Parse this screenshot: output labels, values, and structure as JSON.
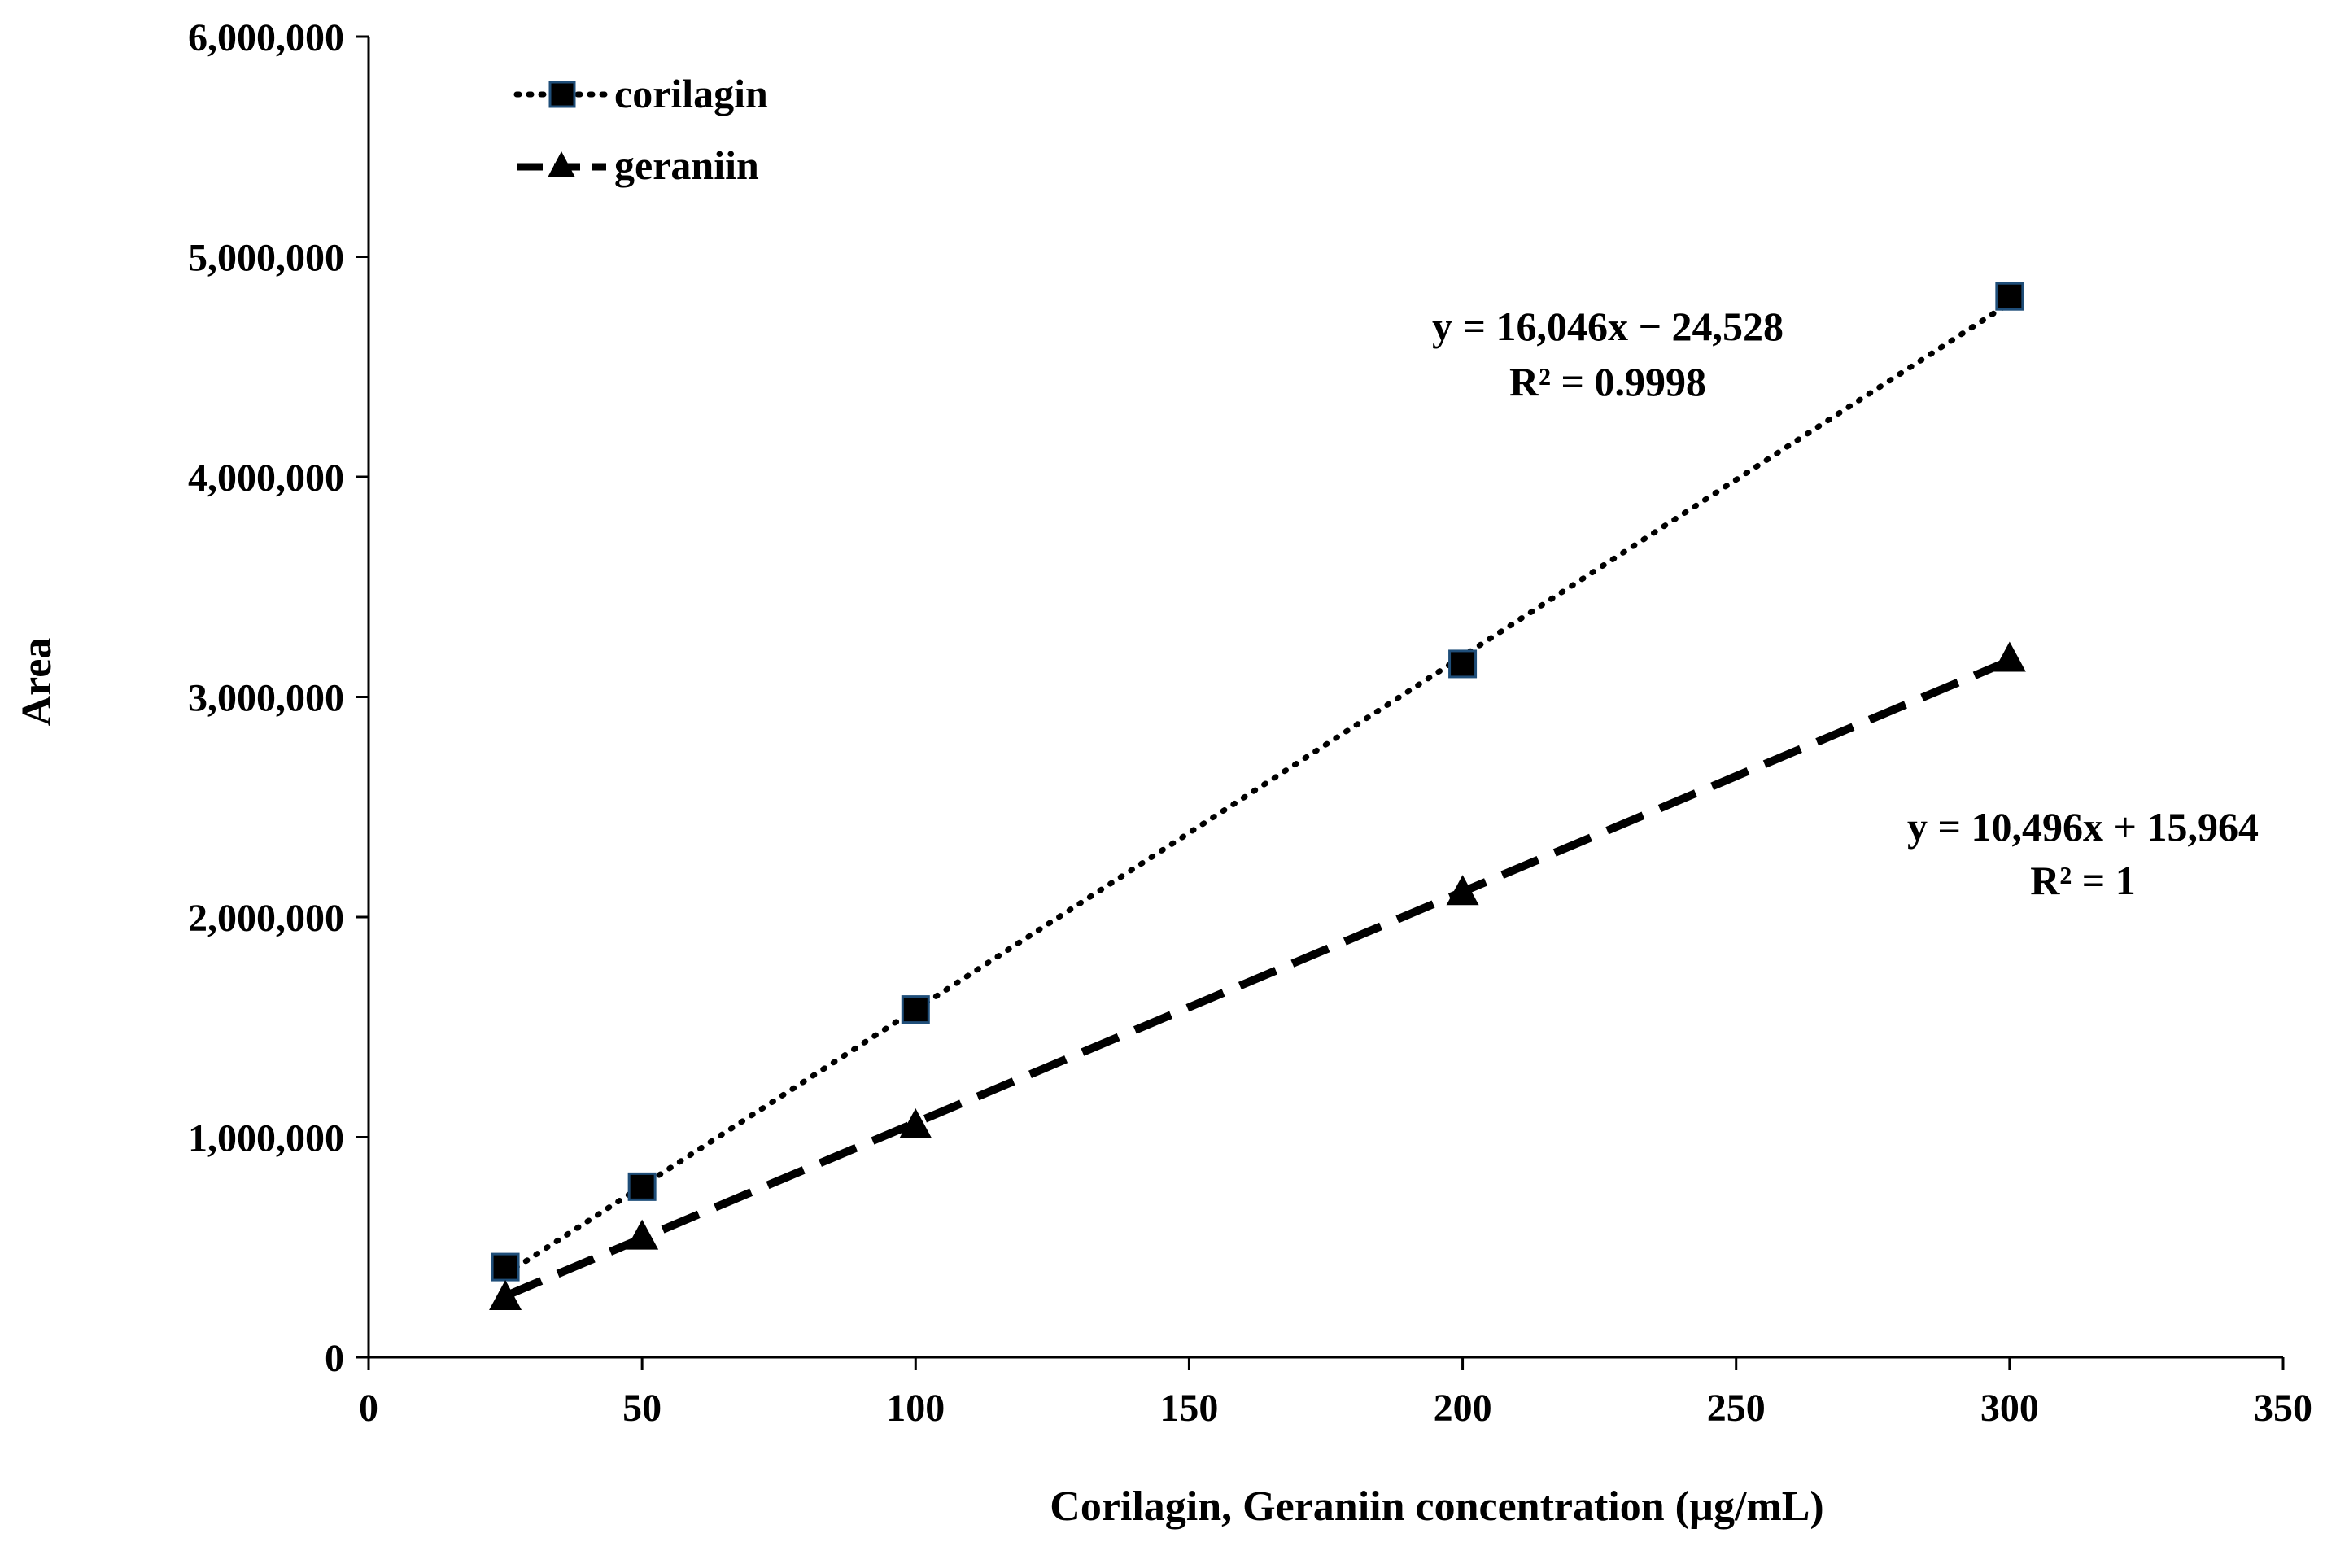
{
  "chart_data": {
    "type": "scatter",
    "title": "",
    "xlabel": "Corilagin, Geraniin concentration (µg/mL)",
    "ylabel": "Area",
    "xlim": [
      0,
      350
    ],
    "ylim": [
      0,
      6000000
    ],
    "xticks": [
      0,
      50,
      100,
      150,
      200,
      250,
      300,
      350
    ],
    "yticks": [
      0,
      1000000,
      2000000,
      3000000,
      4000000,
      5000000,
      6000000
    ],
    "xtick_labels": [
      "0",
      "50",
      "100",
      "150",
      "200",
      "250",
      "300",
      "350"
    ],
    "ytick_labels": [
      "0",
      "1,000,000",
      "2,000,000",
      "3,000,000",
      "4,000,000",
      "5,000,000",
      "6,000,000"
    ],
    "grid": false,
    "legend_position": "top-left",
    "series": [
      {
        "name": "corilagin",
        "marker": "square",
        "line_style": "dotted",
        "x": [
          25,
          50,
          100,
          200,
          300
        ],
        "y": [
          410000,
          775000,
          1580000,
          3150000,
          4820000
        ],
        "trendline": {
          "slope": 16046,
          "intercept": -24528
        },
        "equation": "y = 16,046x − 24,528",
        "r_squared": "R² = 0.9998"
      },
      {
        "name": "geraniin",
        "marker": "triangle",
        "line_style": "dashed",
        "x": [
          25,
          50,
          100,
          200,
          300
        ],
        "y": [
          270000,
          545000,
          1050000,
          2110000,
          3170000
        ],
        "trendline": {
          "slope": 10496,
          "intercept": 15964
        },
        "equation": "y = 10,496x + 15,964",
        "r_squared": "R² = 1"
      }
    ]
  }
}
